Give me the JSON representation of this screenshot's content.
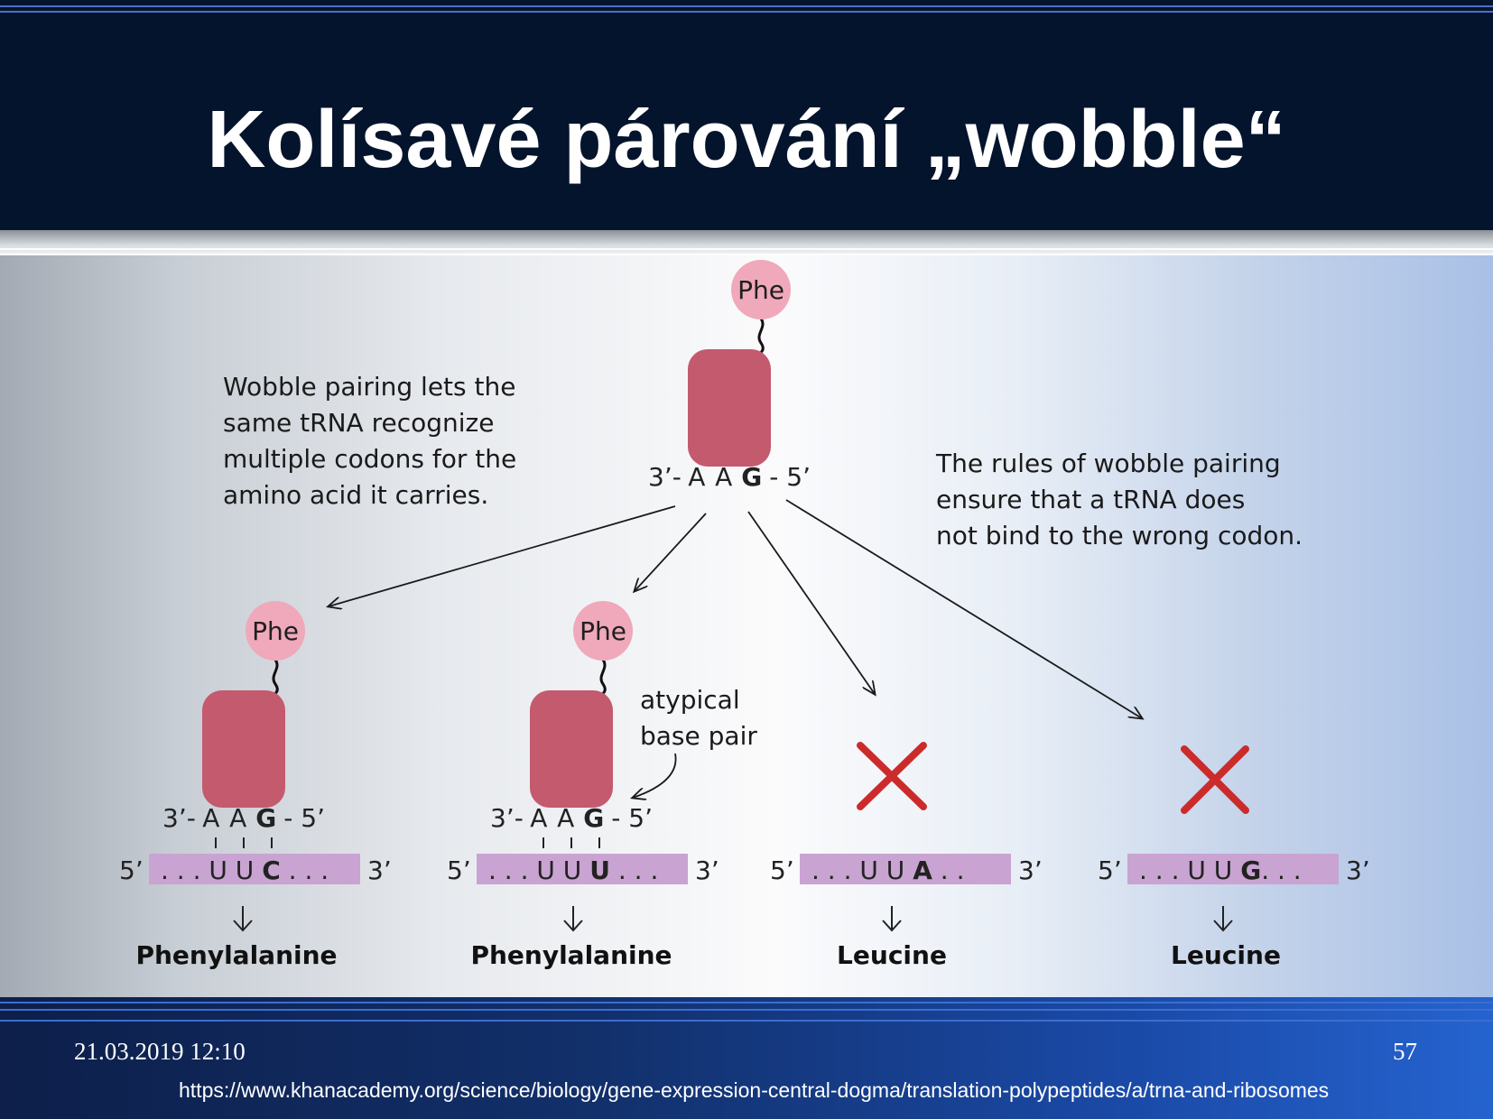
{
  "title": "Kolísavé párování „wobble“",
  "notes": {
    "left": [
      "Wobble pairing lets the",
      "same tRNA recognize",
      "multiple codons for the",
      "amino acid it carries."
    ],
    "right": [
      "The rules of wobble pairing",
      "ensure that a tRNA does",
      "not bind to the wrong codon."
    ],
    "atypical": [
      "atypical",
      "base pair"
    ]
  },
  "top_trna": {
    "amino": "Phe",
    "anticodon": {
      "left": "3’-",
      "b1": "A",
      "b2": "A",
      "b3": "G",
      "right": "- 5’"
    }
  },
  "panels": [
    {
      "amino": "Phe",
      "anticodon": {
        "left": "3’-",
        "b1": "A",
        "b2": "A",
        "b3": "G",
        "right": "- 5’"
      },
      "codon": {
        "left": "5’",
        "pre": ". . . U U ",
        "wobble": "C",
        "post": " . . .",
        "right": "3’"
      },
      "result": "Phenylalanine"
    },
    {
      "amino": "Phe",
      "anticodon": {
        "left": "3’-",
        "b1": "A",
        "b2": "A",
        "b3": "G",
        "right": "- 5’"
      },
      "codon": {
        "left": "5’",
        "pre": ". . . U U ",
        "wobble": "U",
        "post": " . . .",
        "right": "3’"
      },
      "result": "Phenylalanine"
    },
    {
      "codon": {
        "left": "5’",
        "pre": ". . . U U ",
        "wobble": "A",
        "post": " . .",
        "right": "3’"
      },
      "result": "Leucine"
    },
    {
      "codon": {
        "left": "5’",
        "pre": ". . . U U ",
        "wobble": "G",
        "post": ". . .",
        "right": "3’"
      },
      "result": "Leucine"
    }
  ],
  "footer": {
    "date": "21.03.2019 12:10",
    "page": "57",
    "url": "https://www.khanacademy.org/science/biology/gene-expression-central-dogma/translation-polypeptides/a/trna-and-ribosomes"
  },
  "colors": {
    "header_bg": "#05142d",
    "trna_body": "#c45a6e",
    "amino_circle": "#f0a8bb",
    "codon_bar": "#c9a3d1",
    "cross": "#cc2b2b"
  }
}
